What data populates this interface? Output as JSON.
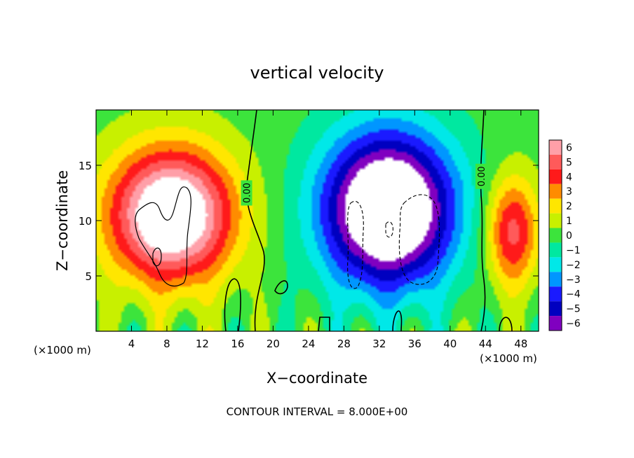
{
  "chart_data": {
    "type": "heatmap",
    "title": "vertical velocity",
    "xlabel": "X−coordinate",
    "ylabel": "Z−coordinate",
    "x_unit_left": "(×1000 m)",
    "x_unit_right": "(×1000 m)",
    "footer": "CONTOUR INTERVAL = 8.000E+00",
    "xlim": [
      0,
      50
    ],
    "ylim": [
      0,
      20
    ],
    "x_ticks": [
      4,
      8,
      12,
      16,
      20,
      24,
      28,
      32,
      36,
      40,
      44,
      48
    ],
    "x_tick_labels": [
      "4",
      "8",
      "12",
      "16",
      "20",
      "24",
      "28",
      "32",
      "36",
      "40",
      "44",
      "48"
    ],
    "y_ticks": [
      5,
      10,
      15
    ],
    "y_tick_labels": [
      "5",
      "10",
      "15"
    ],
    "colorbar": {
      "levels": [
        6,
        5,
        4,
        3,
        2,
        1,
        0,
        -1,
        -2,
        -3,
        -4,
        -5,
        -6
      ],
      "labels": [
        "6",
        "5",
        "4",
        "3",
        "2",
        "1",
        "0",
        "−1",
        "−2",
        "−3",
        "−4",
        "−5",
        "−6"
      ],
      "colors": [
        "#ff9fa8",
        "#ff5a5a",
        "#ff1a1a",
        "#ff8c00",
        "#ffe600",
        "#c8f000",
        "#3ce43c",
        "#00e8a0",
        "#00e8e8",
        "#0096ff",
        "#1a1aff",
        "#0000c0",
        "#8000c0"
      ]
    },
    "contour_labels": [
      {
        "text": "0.00",
        "x": 17.0,
        "y": 12.5
      },
      {
        "text": "0.00",
        "x": 43.5,
        "y": 14.0
      }
    ],
    "features": [
      {
        "name": "updraft-left",
        "x": 8.5,
        "z": 10.5,
        "sx": 7.0,
        "sz": 6.0,
        "amp": 9
      },
      {
        "name": "downdraft-centre",
        "x": 33.0,
        "z": 11.0,
        "sx": 7.5,
        "sz": 7.0,
        "amp": -10
      },
      {
        "name": "updraft-right",
        "x": 47.0,
        "z": 9.0,
        "sx": 3.0,
        "sz": 5.0,
        "amp": 5
      }
    ]
  }
}
